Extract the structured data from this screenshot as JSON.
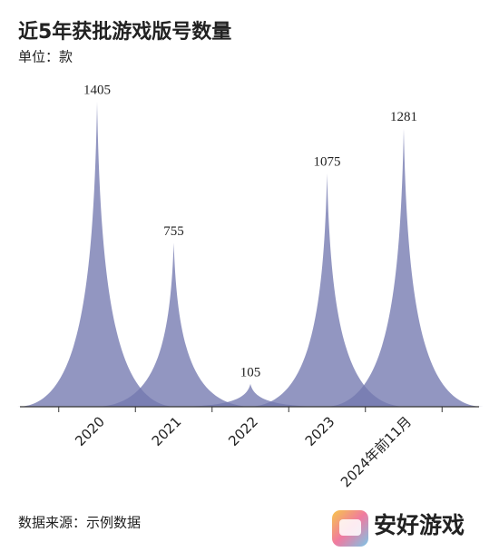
{
  "chart_data": {
    "type": "peak",
    "title": "近5年获批游戏版号数量",
    "subtitle": "单位：款",
    "categories": [
      "2020",
      "2021",
      "2022",
      "2023",
      "2024年前11月"
    ],
    "values": [
      1405,
      755,
      105,
      1075,
      1281
    ],
    "color": "#7379b0"
  },
  "footer": {
    "source": "数据来源：示例数据",
    "watermark": "安好游戏"
  }
}
